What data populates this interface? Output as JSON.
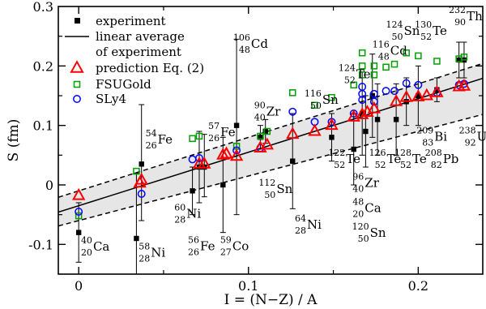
{
  "chart_data": {
    "type": "scatter",
    "xlabel": "I = (N−Z) / A",
    "ylabel": "S  (fm)",
    "xlim": [
      -0.012,
      0.238
    ],
    "ylim": [
      -0.15,
      0.3
    ],
    "xticks": [
      0,
      0.1,
      0.2
    ],
    "xtick_labels": [
      "0",
      "0.1",
      "0.2"
    ],
    "yticks": [
      -0.1,
      0,
      0.1,
      0.2,
      0.3
    ],
    "ytick_labels": [
      "-0.1",
      "0",
      "0.1",
      "0.2",
      "0.3"
    ],
    "grid": false,
    "legend_position": "top-left",
    "legend": [
      {
        "label": "experiment",
        "marker": "filled-square",
        "color": "#000000"
      },
      {
        "label": "linear average",
        "label2": "of experiment",
        "marker": "line",
        "color": "#000000"
      },
      {
        "label": "prediction Eq. (2)",
        "marker": "open-triangle",
        "color": "#ff0000"
      },
      {
        "label": "FSUGold",
        "marker": "open-square",
        "color": "#00a000"
      },
      {
        "label": "SLy4",
        "marker": "open-circle",
        "color": "#0000ff"
      }
    ],
    "linear_average": {
      "slope": 0.9,
      "intercept": -0.035
    },
    "band": {
      "upper": {
        "slope": 0.9,
        "intercept": -0.01
      },
      "lower": {
        "slope": 0.75,
        "intercept": -0.06
      }
    },
    "experiment": [
      {
        "x": 0.0,
        "y": -0.08,
        "lo": -0.13,
        "hi": -0.03
      },
      {
        "x": 0.034,
        "y": -0.09,
        "lo": -0.16,
        "hi": 0.02
      },
      {
        "x": 0.037,
        "y": 0.035,
        "lo": -0.06,
        "hi": 0.135
      },
      {
        "x": 0.067,
        "y": -0.01,
        "lo": -0.05,
        "hi": 0.03
      },
      {
        "x": 0.071,
        "y": 0.03,
        "lo": -0.03,
        "hi": 0.09
      },
      {
        "x": 0.074,
        "y": 0.03,
        "lo": -0.02,
        "hi": 0.085
      },
      {
        "x": 0.085,
        "y": 0.0,
        "lo": -0.08,
        "hi": 0.08
      },
      {
        "x": 0.093,
        "y": 0.1,
        "lo": -0.05,
        "hi": 0.245
      },
      {
        "x": 0.107,
        "y": 0.08,
        "lo": 0.06,
        "hi": 0.1
      },
      {
        "x": 0.11,
        "y": 0.09,
        "lo": 0.07,
        "hi": 0.11
      },
      {
        "x": 0.126,
        "y": 0.04,
        "lo": -0.04,
        "hi": 0.12
      },
      {
        "x": 0.149,
        "y": 0.08,
        "lo": 0.04,
        "hi": 0.12
      },
      {
        "x": 0.162,
        "y": 0.06,
        "lo": 0.0,
        "hi": 0.12
      },
      {
        "x": 0.167,
        "y": 0.12,
        "lo": 0.05,
        "hi": 0.19
      },
      {
        "x": 0.169,
        "y": 0.09,
        "lo": 0.03,
        "hi": 0.15
      },
      {
        "x": 0.173,
        "y": 0.15,
        "lo": 0.08,
        "hi": 0.22
      },
      {
        "x": 0.176,
        "y": 0.11,
        "lo": 0.05,
        "hi": 0.17
      },
      {
        "x": 0.187,
        "y": 0.11,
        "lo": 0.05,
        "hi": 0.17
      },
      {
        "x": 0.193,
        "y": 0.14,
        "lo": 0.1,
        "hi": 0.18
      },
      {
        "x": 0.2,
        "y": 0.15,
        "lo": 0.1,
        "hi": 0.2
      },
      {
        "x": 0.211,
        "y": 0.16,
        "lo": 0.14,
        "hi": 0.18
      },
      {
        "x": 0.224,
        "y": 0.21,
        "lo": 0.18,
        "hi": 0.24
      },
      {
        "x": 0.227,
        "y": 0.21,
        "lo": 0.18,
        "hi": 0.24
      }
    ],
    "prediction": [
      {
        "x": 0.0,
        "y": -0.018
      },
      {
        "x": 0.036,
        "y": 0.003
      },
      {
        "x": 0.037,
        "y": 0.008
      },
      {
        "x": 0.071,
        "y": 0.035
      },
      {
        "x": 0.074,
        "y": 0.035
      },
      {
        "x": 0.085,
        "y": 0.05
      },
      {
        "x": 0.087,
        "y": 0.052
      },
      {
        "x": 0.093,
        "y": 0.048
      },
      {
        "x": 0.107,
        "y": 0.062
      },
      {
        "x": 0.111,
        "y": 0.067
      },
      {
        "x": 0.126,
        "y": 0.085
      },
      {
        "x": 0.139,
        "y": 0.09
      },
      {
        "x": 0.149,
        "y": 0.1
      },
      {
        "x": 0.162,
        "y": 0.114
      },
      {
        "x": 0.167,
        "y": 0.118
      },
      {
        "x": 0.17,
        "y": 0.122
      },
      {
        "x": 0.174,
        "y": 0.128
      },
      {
        "x": 0.187,
        "y": 0.14
      },
      {
        "x": 0.193,
        "y": 0.147
      },
      {
        "x": 0.2,
        "y": 0.148
      },
      {
        "x": 0.205,
        "y": 0.15
      },
      {
        "x": 0.211,
        "y": 0.155
      },
      {
        "x": 0.224,
        "y": 0.165
      },
      {
        "x": 0.227,
        "y": 0.166
      }
    ],
    "fsugold": [
      {
        "x": 0.0,
        "y": -0.052
      },
      {
        "x": 0.034,
        "y": 0.023
      },
      {
        "x": 0.067,
        "y": 0.078
      },
      {
        "x": 0.071,
        "y": 0.082
      },
      {
        "x": 0.093,
        "y": 0.065
      },
      {
        "x": 0.107,
        "y": 0.082
      },
      {
        "x": 0.111,
        "y": 0.09
      },
      {
        "x": 0.126,
        "y": 0.155
      },
      {
        "x": 0.139,
        "y": 0.134
      },
      {
        "x": 0.149,
        "y": 0.147
      },
      {
        "x": 0.162,
        "y": 0.168
      },
      {
        "x": 0.167,
        "y": 0.222
      },
      {
        "x": 0.167,
        "y": 0.2
      },
      {
        "x": 0.167,
        "y": 0.185
      },
      {
        "x": 0.174,
        "y": 0.2
      },
      {
        "x": 0.174,
        "y": 0.185
      },
      {
        "x": 0.181,
        "y": 0.198
      },
      {
        "x": 0.186,
        "y": 0.203
      },
      {
        "x": 0.193,
        "y": 0.222
      },
      {
        "x": 0.2,
        "y": 0.217
      },
      {
        "x": 0.211,
        "y": 0.208
      },
      {
        "x": 0.224,
        "y": 0.212
      },
      {
        "x": 0.227,
        "y": 0.215
      }
    ],
    "sly4": [
      {
        "x": 0.0,
        "y": -0.045
      },
      {
        "x": 0.037,
        "y": -0.015
      },
      {
        "x": 0.067,
        "y": 0.043
      },
      {
        "x": 0.071,
        "y": 0.045
      },
      {
        "x": 0.093,
        "y": 0.058
      },
      {
        "x": 0.107,
        "y": 0.062
      },
      {
        "x": 0.126,
        "y": 0.123
      },
      {
        "x": 0.139,
        "y": 0.106
      },
      {
        "x": 0.149,
        "y": 0.106
      },
      {
        "x": 0.162,
        "y": 0.12
      },
      {
        "x": 0.167,
        "y": 0.165
      },
      {
        "x": 0.167,
        "y": 0.153
      },
      {
        "x": 0.167,
        "y": 0.143
      },
      {
        "x": 0.174,
        "y": 0.153
      },
      {
        "x": 0.174,
        "y": 0.14
      },
      {
        "x": 0.181,
        "y": 0.158
      },
      {
        "x": 0.186,
        "y": 0.158
      },
      {
        "x": 0.193,
        "y": 0.171
      },
      {
        "x": 0.2,
        "y": 0.168
      },
      {
        "x": 0.211,
        "y": 0.155
      },
      {
        "x": 0.224,
        "y": 0.168
      },
      {
        "x": 0.227,
        "y": 0.17
      }
    ],
    "annotations": [
      {
        "A": "40",
        "Z": "20",
        "sym": "Ca",
        "x": 0.002,
        "y": -0.105
      },
      {
        "A": "58",
        "Z": "28",
        "sym": "Ni",
        "x": 0.036,
        "y": -0.115
      },
      {
        "A": "54",
        "Z": "26",
        "sym": "Fe",
        "x": 0.04,
        "y": 0.075
      },
      {
        "A": "60",
        "Z": "28",
        "sym": "Ni",
        "x": 0.057,
        "y": -0.05
      },
      {
        "A": "56",
        "Z": "26",
        "sym": "Fe",
        "x": 0.065,
        "y": -0.104
      },
      {
        "A": "57",
        "Z": "26",
        "sym": "Fe",
        "x": 0.077,
        "y": 0.087
      },
      {
        "A": "59",
        "Z": "27",
        "sym": "Co",
        "x": 0.084,
        "y": -0.104
      },
      {
        "A": "106",
        "Z": "48",
        "sym": "Cd",
        "x": 0.092,
        "y": 0.236
      },
      {
        "A": "90",
        "Z": "40",
        "sym": "Zr",
        "x": 0.104,
        "y": 0.122
      },
      {
        "A": "112",
        "Z": "50",
        "sym": "Sn",
        "x": 0.107,
        "y": -0.008
      },
      {
        "A": "116",
        "Z": "50",
        "sym": "Sn",
        "x": 0.134,
        "y": 0.142
      },
      {
        "A": "64",
        "Z": "28",
        "sym": "Ni",
        "x": 0.128,
        "y": -0.068
      },
      {
        "A": "122",
        "Z": "52",
        "sym": "Te",
        "x": 0.148,
        "y": 0.042
      },
      {
        "A": "124",
        "Z": "52",
        "sym": "Te",
        "x": 0.154,
        "y": 0.185
      },
      {
        "A": "116",
        "Z": "48",
        "sym": "Cd",
        "x": 0.174,
        "y": 0.224
      },
      {
        "A": "96",
        "Z": "40",
        "sym": "Zr",
        "x": 0.162,
        "y": 0.002
      },
      {
        "A": "48",
        "Z": "20",
        "sym": "Ca",
        "x": 0.162,
        "y": -0.04
      },
      {
        "A": "120",
        "Z": "50",
        "sym": "Sn",
        "x": 0.162,
        "y": -0.082
      },
      {
        "A": "126",
        "Z": "52",
        "sym": "Te",
        "x": 0.172,
        "y": 0.042
      },
      {
        "A": "128",
        "Z": "52",
        "sym": "Te",
        "x": 0.187,
        "y": 0.042
      },
      {
        "A": "124",
        "Z": "50",
        "sym": "Sn",
        "x": 0.182,
        "y": 0.258
      },
      {
        "A": "130",
        "Z": "52",
        "sym": "Te",
        "x": 0.199,
        "y": 0.258
      },
      {
        "A": "209",
        "Z": "83",
        "sym": "Bi",
        "x": 0.2,
        "y": 0.08
      },
      {
        "A": "208",
        "Z": "82",
        "sym": "Pb",
        "x": 0.205,
        "y": 0.042
      },
      {
        "A": "232",
        "Z": "90",
        "sym": "Th",
        "x": 0.219,
        "y": 0.282
      },
      {
        "A": "238",
        "Z": "92",
        "sym": "U",
        "x": 0.225,
        "y": 0.08
      }
    ]
  }
}
